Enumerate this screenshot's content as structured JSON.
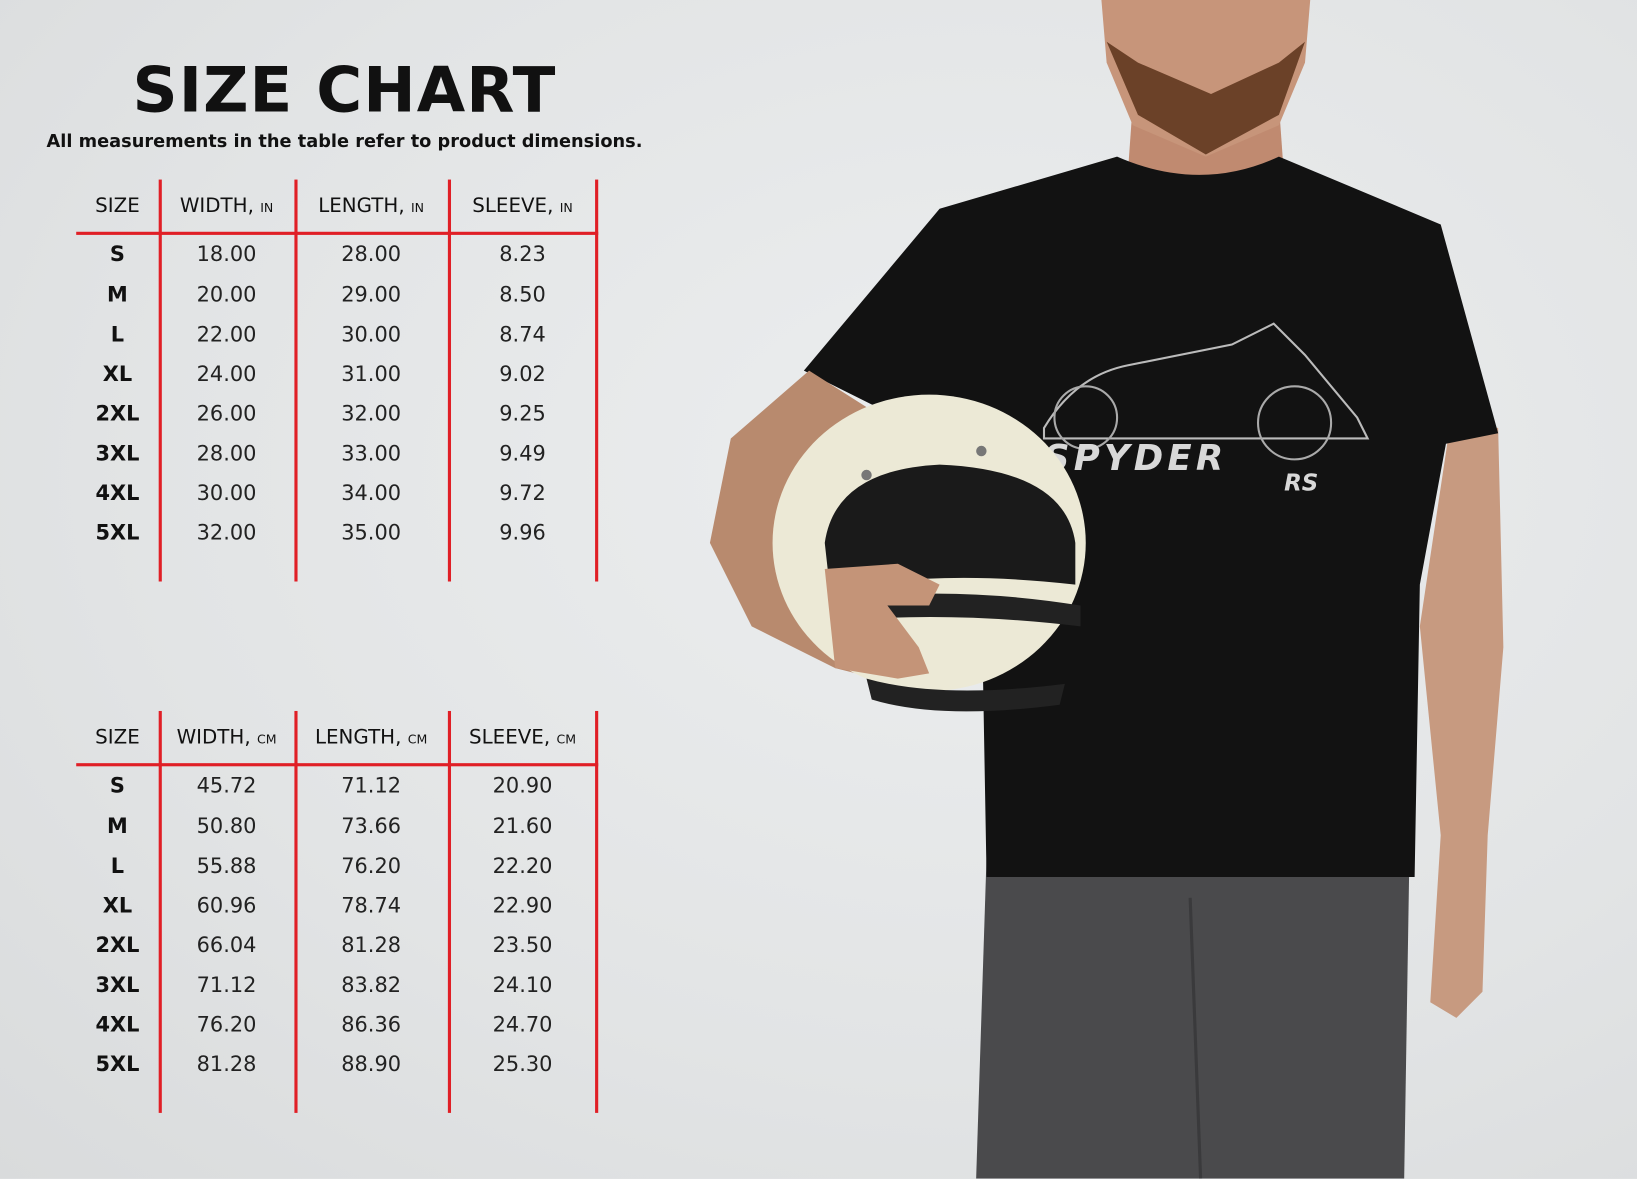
{
  "title": "SIZE CHART",
  "subtitle": "All measurements in the table refer to product dimensions.",
  "colors": {
    "accent": "#e01f26",
    "background": "#e3e5e6",
    "shirt": "#111111",
    "helmet": "#ece9d6"
  },
  "shirt_print": {
    "line1": "SPYDER",
    "line2": "RS"
  },
  "tables": [
    {
      "unit": "IN",
      "headers": [
        "SIZE",
        "WIDTH,",
        "LENGTH,",
        "SLEEVE,"
      ],
      "rows": [
        [
          "S",
          "18.00",
          "28.00",
          "8.23"
        ],
        [
          "M",
          "20.00",
          "29.00",
          "8.50"
        ],
        [
          "L",
          "22.00",
          "30.00",
          "8.74"
        ],
        [
          "XL",
          "24.00",
          "31.00",
          "9.02"
        ],
        [
          "2XL",
          "26.00",
          "32.00",
          "9.25"
        ],
        [
          "3XL",
          "28.00",
          "33.00",
          "9.49"
        ],
        [
          "4XL",
          "30.00",
          "34.00",
          "9.72"
        ],
        [
          "5XL",
          "32.00",
          "35.00",
          "9.96"
        ]
      ]
    },
    {
      "unit": "CM",
      "headers": [
        "SIZE",
        "WIDTH,",
        "LENGTH,",
        "SLEEVE,"
      ],
      "rows": [
        [
          "S",
          "45.72",
          "71.12",
          "20.90"
        ],
        [
          "M",
          "50.80",
          "73.66",
          "21.60"
        ],
        [
          "L",
          "55.88",
          "76.20",
          "22.20"
        ],
        [
          "XL",
          "60.96",
          "78.74",
          "22.90"
        ],
        [
          "2XL",
          "66.04",
          "81.28",
          "23.50"
        ],
        [
          "3XL",
          "71.12",
          "83.82",
          "24.10"
        ],
        [
          "4XL",
          "76.20",
          "86.36",
          "24.70"
        ],
        [
          "5XL",
          "81.28",
          "88.90",
          "25.30"
        ]
      ]
    }
  ]
}
